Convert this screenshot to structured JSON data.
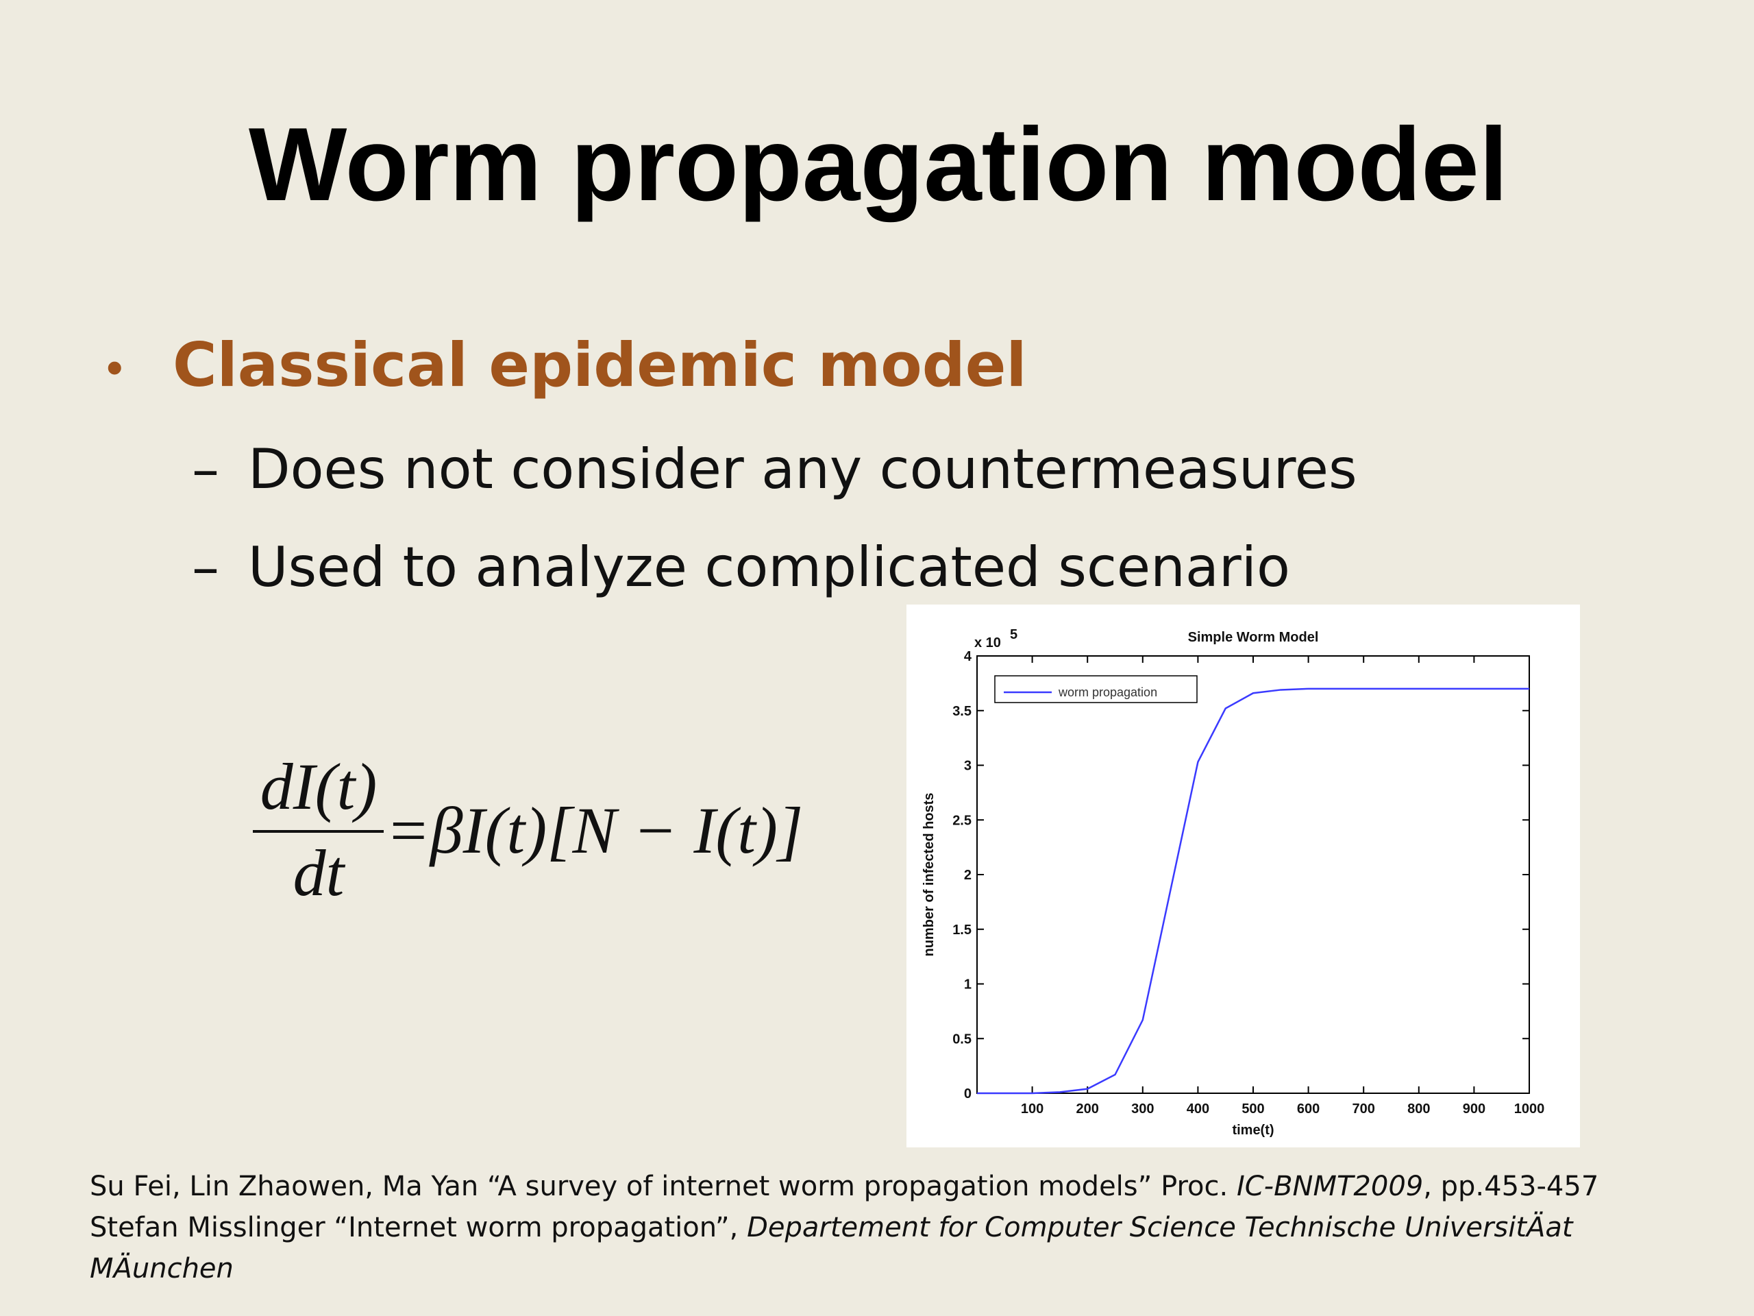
{
  "slide": {
    "title": "Worm propagation model",
    "bullet_marker": "•",
    "bullet": "Classical epidemic model",
    "sub_marker": "–",
    "sub_bullets": [
      "Does not consider any countermeasures",
      "Used to analyze complicated scenario"
    ]
  },
  "equation": {
    "numerator": "dI(t)",
    "denominator": "dt",
    "rhs": "=βI(t)[N − I(t)]"
  },
  "chart_data": {
    "type": "line",
    "title": "Simple Worm Model",
    "x_label": "time(t)",
    "y_label": "number of infected hosts",
    "multiplier": "x 10",
    "multiplier_exp": "5",
    "x": [
      0,
      50,
      100,
      150,
      200,
      250,
      300,
      350,
      400,
      450,
      500,
      550,
      600,
      650,
      700,
      750,
      800,
      850,
      900,
      950,
      1000
    ],
    "series": [
      {
        "name": "worm propagation",
        "color": "#3a3aff",
        "values": [
          0,
          0,
          0,
          0.01,
          0.04,
          0.17,
          0.67,
          1.85,
          3.03,
          3.52,
          3.66,
          3.69,
          3.7,
          3.7,
          3.7,
          3.7,
          3.7,
          3.7,
          3.7,
          3.7,
          3.7
        ]
      }
    ],
    "xlim": [
      0,
      1000
    ],
    "ylim": [
      0,
      4
    ],
    "xticks": [
      100,
      200,
      300,
      400,
      500,
      600,
      700,
      800,
      900,
      1000
    ],
    "yticks": [
      0,
      0.5,
      1,
      1.5,
      2,
      2.5,
      3,
      3.5,
      4
    ]
  },
  "references": [
    [
      {
        "text": "Su Fei, Lin Zhaowen, Ma Yan “A survey of internet worm propagation models” Proc. ",
        "italic": false
      },
      {
        "text": "IC-BNMT2009",
        "italic": true
      },
      {
        "text": ", pp.453-457",
        "italic": false
      }
    ],
    [
      {
        "text": "Stefan Misslinger “Internet worm propagation”, ",
        "italic": false
      },
      {
        "text": "Departement for Computer Science Technische UniversitÄat",
        "italic": true
      }
    ],
    [
      {
        "text": "MÄunchen",
        "italic": true
      }
    ]
  ]
}
